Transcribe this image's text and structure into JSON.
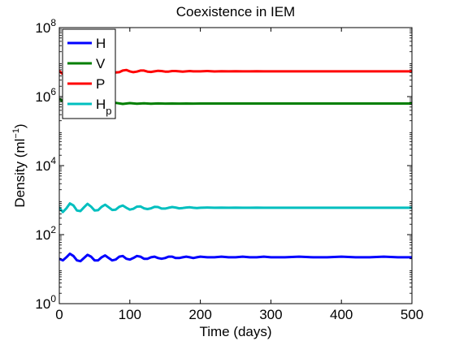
{
  "chart_data": {
    "type": "line",
    "title": "Coexistence in IEM",
    "xlabel": "Time (days)",
    "ylabel": "Density (ml",
    "ylabel_sup": "−1",
    "ylabel_close": ")",
    "xlim": [
      0,
      500
    ],
    "ylim": [
      1,
      100000000
    ],
    "yscale": "log",
    "grid": false,
    "legend_position": "top-left",
    "xticks": [
      {
        "value": 0,
        "label": "0"
      },
      {
        "value": 100,
        "label": "100"
      },
      {
        "value": 200,
        "label": "200"
      },
      {
        "value": 300,
        "label": "300"
      },
      {
        "value": 400,
        "label": "400"
      },
      {
        "value": 500,
        "label": "500"
      }
    ],
    "yticks": [
      {
        "value": 1,
        "base": "10",
        "exp": "0"
      },
      {
        "value": 100,
        "base": "10",
        "exp": "2"
      },
      {
        "value": 10000,
        "base": "10",
        "exp": "4"
      },
      {
        "value": 1000000,
        "base": "10",
        "exp": "6"
      },
      {
        "value": 100000000,
        "base": "10",
        "exp": "8"
      }
    ],
    "series": [
      {
        "name": "H",
        "name_sub": "",
        "color": "#0000ff",
        "x": [
          0,
          5,
          10,
          15,
          20,
          25,
          30,
          35,
          40,
          45,
          50,
          55,
          60,
          65,
          70,
          75,
          80,
          85,
          90,
          95,
          100,
          105,
          110,
          115,
          120,
          125,
          130,
          135,
          140,
          145,
          150,
          155,
          160,
          165,
          170,
          175,
          180,
          185,
          190,
          195,
          200,
          210,
          220,
          230,
          240,
          250,
          260,
          270,
          280,
          290,
          300,
          320,
          340,
          360,
          380,
          400,
          420,
          440,
          460,
          480,
          500
        ],
        "y": [
          20,
          18,
          22,
          28,
          24,
          18,
          17,
          21,
          26,
          23,
          18,
          18,
          22,
          25,
          21,
          18,
          19,
          23,
          24,
          20,
          19,
          21,
          24,
          23,
          20,
          20,
          22,
          23,
          21,
          20,
          21,
          23,
          23,
          21,
          21,
          22,
          23,
          22,
          21,
          22,
          23,
          22,
          22,
          23,
          22,
          22,
          23,
          22,
          22,
          23,
          22,
          22,
          23,
          22,
          22,
          23,
          22,
          22,
          23,
          22,
          22
        ]
      },
      {
        "name": "V",
        "name_sub": "",
        "color": "#007f00",
        "x": [
          0,
          10,
          20,
          30,
          40,
          50,
          60,
          70,
          80,
          90,
          100,
          110,
          120,
          130,
          140,
          150,
          160,
          170,
          180,
          190,
          200,
          220,
          240,
          260,
          280,
          300,
          350,
          400,
          450,
          500
        ],
        "y": [
          850000,
          650000,
          780000,
          600000,
          700000,
          620000,
          680000,
          610000,
          660000,
          615000,
          650000,
          620000,
          640000,
          625000,
          635000,
          628000,
          632000,
          628000,
          631000,
          629000,
          630000,
          630000,
          630000,
          630000,
          630000,
          630000,
          630000,
          630000,
          630000,
          630000
        ]
      },
      {
        "name": "P",
        "name_sub": "",
        "color": "#ff0000",
        "x": [
          0,
          5,
          10,
          15,
          20,
          25,
          30,
          35,
          40,
          45,
          50,
          55,
          60,
          65,
          70,
          75,
          80,
          85,
          90,
          95,
          100,
          105,
          110,
          115,
          120,
          125,
          130,
          135,
          140,
          145,
          150,
          155,
          160,
          165,
          170,
          175,
          180,
          185,
          190,
          195,
          200,
          210,
          220,
          230,
          240,
          250,
          260,
          270,
          280,
          290,
          300,
          320,
          340,
          360,
          380,
          400,
          420,
          440,
          460,
          480,
          500
        ],
        "y": [
          5500000,
          4500000,
          4800000,
          5800000,
          6500000,
          5700000,
          4700000,
          4800000,
          5700000,
          6200000,
          5600000,
          4900000,
          5000000,
          5700000,
          6000000,
          5500000,
          5000000,
          5100000,
          5700000,
          5900000,
          5400000,
          5100000,
          5300000,
          5700000,
          5700000,
          5300000,
          5200000,
          5400000,
          5600000,
          5500000,
          5300000,
          5300000,
          5500000,
          5500000,
          5400000,
          5300000,
          5400000,
          5500000,
          5400000,
          5400000,
          5400000,
          5500000,
          5350000,
          5450000,
          5400000,
          5450000,
          5400000,
          5400000,
          5450000,
          5400000,
          5400000,
          5400000,
          5400000,
          5400000,
          5400000,
          5400000,
          5400000,
          5400000,
          5400000,
          5400000,
          5400000
        ]
      },
      {
        "name": "H",
        "name_sub": "p",
        "color": "#00bfbf",
        "x": [
          0,
          5,
          10,
          15,
          20,
          25,
          30,
          35,
          40,
          45,
          50,
          55,
          60,
          65,
          70,
          75,
          80,
          85,
          90,
          95,
          100,
          105,
          110,
          115,
          120,
          125,
          130,
          135,
          140,
          145,
          150,
          155,
          160,
          165,
          170,
          175,
          180,
          185,
          190,
          195,
          200,
          210,
          220,
          230,
          240,
          250,
          260,
          270,
          280,
          290,
          300,
          320,
          340,
          360,
          380,
          400,
          420,
          440,
          460,
          480,
          500
        ],
        "y": [
          600,
          450,
          580,
          800,
          700,
          500,
          480,
          620,
          780,
          650,
          500,
          510,
          640,
          740,
          620,
          520,
          530,
          640,
          700,
          600,
          530,
          560,
          650,
          660,
          580,
          550,
          580,
          640,
          630,
          570,
          570,
          600,
          630,
          610,
          580,
          590,
          610,
          620,
          600,
          590,
          600,
          610,
          600,
          605,
          600,
          605,
          600,
          600,
          605,
          600,
          600,
          600,
          600,
          600,
          600,
          600,
          600,
          600,
          600,
          600,
          600
        ]
      }
    ]
  }
}
